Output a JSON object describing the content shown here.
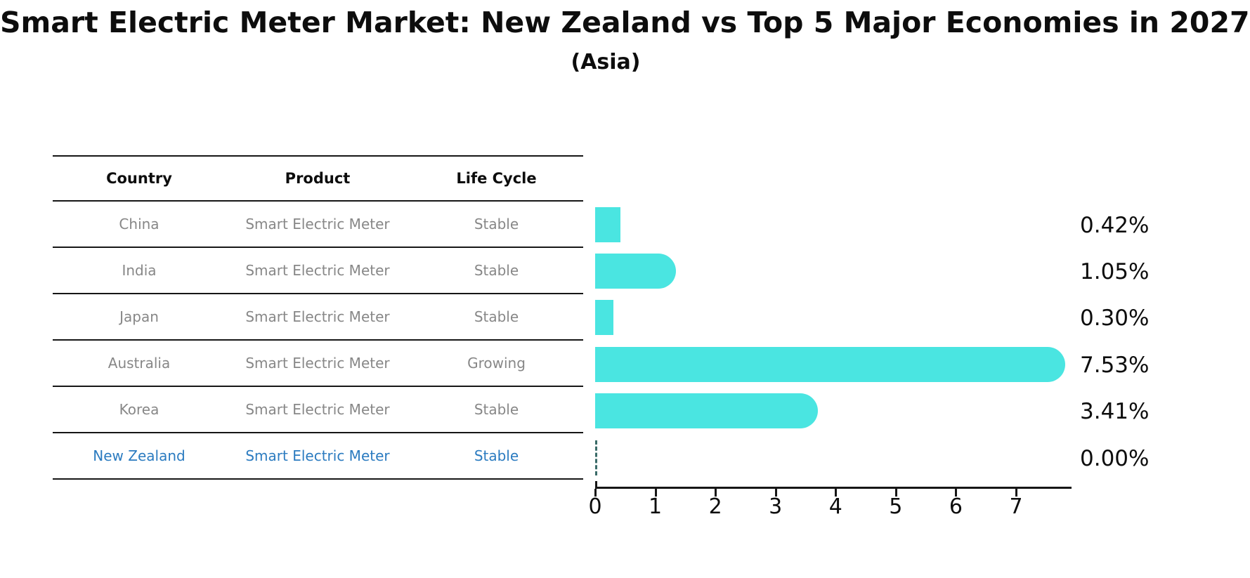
{
  "header": {
    "title": "Smart Electric Meter Market: New Zealand vs Top 5 Major Economies in 2027",
    "subtitle": "(Asia)"
  },
  "table": {
    "columns": [
      "Country",
      "Product",
      "Life Cycle"
    ],
    "rows": [
      {
        "country": "China",
        "product": "Smart Electric Meter",
        "life_cycle": "Stable",
        "highlight": false
      },
      {
        "country": "India",
        "product": "Smart Electric Meter",
        "life_cycle": "Stable",
        "highlight": false
      },
      {
        "country": "Japan",
        "product": "Smart Electric Meter",
        "life_cycle": "Stable",
        "highlight": false
      },
      {
        "country": "Australia",
        "product": "Smart Electric Meter",
        "life_cycle": "Growing",
        "highlight": false
      },
      {
        "country": "Korea",
        "product": "Smart Electric Meter",
        "life_cycle": "Stable",
        "highlight": false
      },
      {
        "country": "New Zealand",
        "product": "Smart Electric Meter",
        "life_cycle": "Stable",
        "highlight": true
      }
    ]
  },
  "chart_data": {
    "type": "bar",
    "orientation": "horizontal",
    "title": "Smart Electric Meter Market: New Zealand vs Top 5 Major Economies in 2027",
    "subtitle": "(Asia)",
    "categories": [
      "China",
      "India",
      "Japan",
      "Australia",
      "Korea",
      "New Zealand"
    ],
    "values": [
      0.42,
      1.05,
      0.3,
      7.53,
      3.41,
      0.0
    ],
    "value_labels": [
      "0.42%",
      "1.05%",
      "0.30%",
      "7.53%",
      "3.41%",
      "0.00%"
    ],
    "x_ticks": [
      "0",
      "1",
      "2",
      "3",
      "4",
      "5",
      "6",
      "7"
    ],
    "x_tick_values": [
      0,
      1,
      2,
      3,
      4,
      5,
      6,
      7
    ],
    "xlim": [
      0,
      7.9
    ],
    "xlabel": "",
    "ylabel": "",
    "grid": false,
    "legend": null,
    "zero_value_style": "dashed-outline"
  },
  "colors": {
    "bar": "#4ae5e1",
    "zero_dash": "#3a6b68",
    "highlight_text": "#2b7bc0",
    "table_text": "#878787",
    "heading_text": "#0d0d0d",
    "axis": "#161616"
  }
}
